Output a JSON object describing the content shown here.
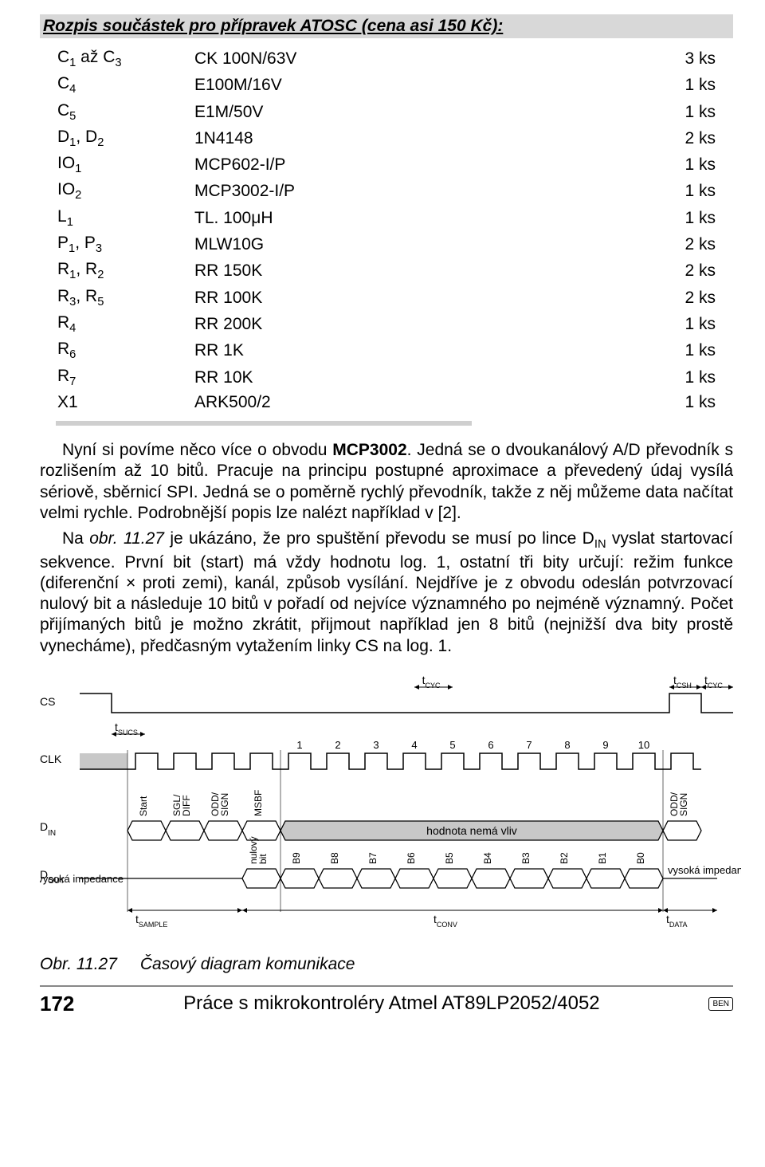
{
  "section_title": "Rozpis součástek pro přípravek ATOSC (cena asi 150 Kč):",
  "parts": [
    {
      "ref": "C<sub>1</sub> až C<sub>3</sub>",
      "val": "CK 100N/63V",
      "qty": "3 ks"
    },
    {
      "ref": "C<sub>4</sub>",
      "val": "E100M/16V",
      "qty": "1 ks"
    },
    {
      "ref": "C<sub>5</sub>",
      "val": "E1M/50V",
      "qty": "1 ks"
    },
    {
      "ref": "D<sub>1</sub>, D<sub>2</sub>",
      "val": "1N4148",
      "qty": "2 ks"
    },
    {
      "ref": "IO<sub>1</sub>",
      "val": "MCP602-I/P",
      "qty": "1 ks"
    },
    {
      "ref": "IO<sub>2</sub>",
      "val": "MCP3002-I/P",
      "qty": "1 ks"
    },
    {
      "ref": "L<sub>1</sub>",
      "val": "TL. 100μH",
      "qty": "1 ks"
    },
    {
      "ref": "P<sub>1</sub>, P<sub>3</sub>",
      "val": "MLW10G",
      "qty": "2 ks"
    },
    {
      "ref": "R<sub>1</sub>, R<sub>2</sub>",
      "val": "RR 150K",
      "qty": "2 ks"
    },
    {
      "ref": "R<sub>3</sub>, R<sub>5</sub>",
      "val": "RR 100K",
      "qty": "2 ks"
    },
    {
      "ref": "R<sub>4</sub>",
      "val": "RR 200K",
      "qty": "1 ks"
    },
    {
      "ref": "R<sub>6</sub>",
      "val": "RR 1K",
      "qty": "1 ks"
    },
    {
      "ref": "R<sub>7</sub>",
      "val": "RR 10K",
      "qty": "1 ks"
    },
    {
      "ref": "X1",
      "val": "ARK500/2",
      "qty": "1 ks"
    }
  ],
  "para1": "Nyní si povíme něco více o obvodu <b>MCP3002</b>. Jedná se o dvoukanálový A/D převodník s rozlišením až 10 bitů. Pracuje na principu postupné aproximace a převedený údaj vysílá sériově, sběrnicí SPI. Jedná se o poměrně rychlý převodník, takže z něj můžeme data načítat velmi rychle. Podrobnější popis lze nalézt například v [2].",
  "para2": "Na <i>obr. 11.27</i> je ukázáno, že pro spuštění převodu se musí po lince D<sub>IN</sub> vyslat startovací sekvence. První bit (start) má vždy hodnotu log. 1, ostatní tři bity určují: režim funkce (diferenční × proti zemi), kanál, způsob vysílání. Nejdříve je z obvodu odeslán potvrzovací nulový bit a následuje 10 bitů v pořadí od nejvíce významného po nejméně významný. Počet přijímaných bitů je možno zkrátit, přijmout například jen 8 bitů (nejnižší dva bity prostě vynecháme), předčasným vytažením linky CS na log. 1.",
  "timing": {
    "signals": [
      "CS",
      "CLK",
      "D<sub>IN</sub>",
      "D<sub>OUT</sub>"
    ],
    "tlabels": {
      "tcyc": "t<sub>CYC</sub>",
      "tcsh": "t<sub>CSH</sub>",
      "tsucs": "t<sub>SUCS</sub>",
      "tsample": "t<sub>SAMPLE</sub>",
      "tconv": "t<sub>CONV</sub>",
      "tdata": "t<sub>DATA</sub>"
    },
    "clk_numbers": [
      "1",
      "2",
      "3",
      "4",
      "5",
      "6",
      "7",
      "8",
      "9",
      "10"
    ],
    "din_labels": [
      "Start",
      "SGL/\nDIFF",
      "ODD/\nSIGN",
      "MSBF"
    ],
    "din_center": "hodnota nemá vliv",
    "din_tail": [
      "ODD/\nSIGN"
    ],
    "dout_pre": "vysoká impedance",
    "dout_bits": [
      "nulový\nbit",
      "B9",
      "B8",
      "B7",
      "B6",
      "B5",
      "B4",
      "B3",
      "B2",
      "B1",
      "B0"
    ],
    "dout_post": "vysoká impedance",
    "colors": {
      "stroke": "#000000",
      "fill_hatch": "#bfbfbf",
      "bg": "#ffffff"
    },
    "line_width": 1.5,
    "font_label": 14
  },
  "caption": {
    "ref": "Obr. 11.27",
    "text": "Časový diagram komunikace"
  },
  "footer": {
    "page": "172",
    "title": "Práce s mikrokontroléry Atmel AT89LP2052/4052",
    "logo": "BEN"
  }
}
